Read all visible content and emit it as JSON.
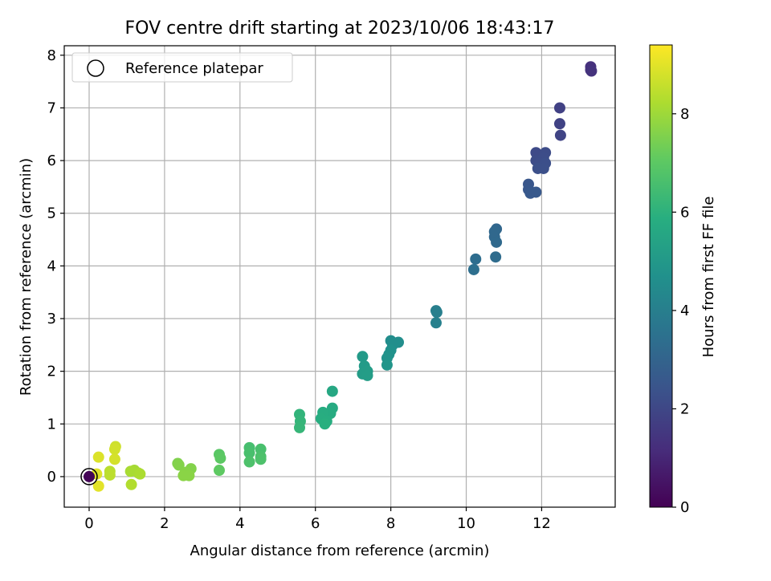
{
  "chart_data": {
    "type": "scatter",
    "title": "FOV centre drift starting at 2023/10/06 18:43:17",
    "xlabel": "Angular distance from reference (arcmin)",
    "ylabel": "Rotation from reference (arcmin)",
    "xlim": [
      -0.66,
      13.95
    ],
    "ylim": [
      -0.58,
      8.18
    ],
    "xticks": [
      0,
      2,
      4,
      6,
      8,
      10,
      12
    ],
    "yticks": [
      0,
      1,
      2,
      3,
      4,
      5,
      6,
      7,
      8
    ],
    "grid": true,
    "legend": {
      "position": "top-left",
      "entries": [
        "Reference platepar"
      ]
    },
    "reference_point": {
      "x": 0,
      "y": 0,
      "label": "Reference platepar"
    },
    "colorbar": {
      "label": "Hours from first FF file",
      "colormap": "viridis",
      "range": [
        0,
        9.4
      ],
      "ticks": [
        0,
        2,
        4,
        6,
        8
      ]
    },
    "points": [
      {
        "x": 13.3,
        "y": 7.78,
        "c": 1.3
      },
      {
        "x": 13.3,
        "y": 7.72,
        "c": 1.3
      },
      {
        "x": 13.32,
        "y": 7.7,
        "c": 1.35
      },
      {
        "x": 12.48,
        "y": 7.0,
        "c": 1.8
      },
      {
        "x": 12.48,
        "y": 6.7,
        "c": 1.85
      },
      {
        "x": 12.5,
        "y": 6.48,
        "c": 1.9
      },
      {
        "x": 11.85,
        "y": 6.15,
        "c": 2.1
      },
      {
        "x": 11.9,
        "y": 6.1,
        "c": 2.1
      },
      {
        "x": 12.1,
        "y": 6.15,
        "c": 2.15
      },
      {
        "x": 11.85,
        "y": 6.0,
        "c": 2.15
      },
      {
        "x": 12.05,
        "y": 6.05,
        "c": 2.2
      },
      {
        "x": 11.95,
        "y": 5.95,
        "c": 2.2
      },
      {
        "x": 12.1,
        "y": 5.95,
        "c": 2.25
      },
      {
        "x": 11.9,
        "y": 5.85,
        "c": 2.3
      },
      {
        "x": 12.05,
        "y": 5.85,
        "c": 2.3
      },
      {
        "x": 11.65,
        "y": 5.55,
        "c": 2.5
      },
      {
        "x": 11.65,
        "y": 5.45,
        "c": 2.55
      },
      {
        "x": 11.7,
        "y": 5.38,
        "c": 2.6
      },
      {
        "x": 11.85,
        "y": 5.4,
        "c": 2.6
      },
      {
        "x": 10.8,
        "y": 4.7,
        "c": 3.1
      },
      {
        "x": 10.75,
        "y": 4.65,
        "c": 3.15
      },
      {
        "x": 10.75,
        "y": 4.55,
        "c": 3.15
      },
      {
        "x": 10.8,
        "y": 4.45,
        "c": 3.2
      },
      {
        "x": 10.78,
        "y": 4.17,
        "c": 3.3
      },
      {
        "x": 10.25,
        "y": 4.13,
        "c": 3.35
      },
      {
        "x": 10.2,
        "y": 3.93,
        "c": 3.4
      },
      {
        "x": 9.2,
        "y": 3.15,
        "c": 4.0
      },
      {
        "x": 9.22,
        "y": 3.12,
        "c": 4.0
      },
      {
        "x": 9.2,
        "y": 2.92,
        "c": 4.05
      },
      {
        "x": 8.0,
        "y": 2.58,
        "c": 4.55
      },
      {
        "x": 8.2,
        "y": 2.55,
        "c": 4.6
      },
      {
        "x": 8.05,
        "y": 2.5,
        "c": 4.6
      },
      {
        "x": 8.0,
        "y": 2.4,
        "c": 4.7
      },
      {
        "x": 7.95,
        "y": 2.32,
        "c": 4.75
      },
      {
        "x": 7.9,
        "y": 2.25,
        "c": 4.8
      },
      {
        "x": 7.9,
        "y": 2.12,
        "c": 4.85
      },
      {
        "x": 7.25,
        "y": 2.28,
        "c": 5.05
      },
      {
        "x": 7.3,
        "y": 2.1,
        "c": 5.1
      },
      {
        "x": 7.25,
        "y": 1.95,
        "c": 5.15
      },
      {
        "x": 7.38,
        "y": 2.0,
        "c": 5.15
      },
      {
        "x": 7.38,
        "y": 1.92,
        "c": 5.2
      },
      {
        "x": 6.45,
        "y": 1.62,
        "c": 5.6
      },
      {
        "x": 6.45,
        "y": 1.3,
        "c": 5.7
      },
      {
        "x": 6.4,
        "y": 1.2,
        "c": 5.75
      },
      {
        "x": 6.2,
        "y": 1.22,
        "c": 5.8
      },
      {
        "x": 6.15,
        "y": 1.1,
        "c": 5.85
      },
      {
        "x": 6.3,
        "y": 1.05,
        "c": 5.85
      },
      {
        "x": 6.25,
        "y": 1.0,
        "c": 5.9
      },
      {
        "x": 5.58,
        "y": 1.18,
        "c": 6.1
      },
      {
        "x": 5.6,
        "y": 1.05,
        "c": 6.15
      },
      {
        "x": 5.58,
        "y": 0.93,
        "c": 6.2
      },
      {
        "x": 4.25,
        "y": 0.55,
        "c": 6.55
      },
      {
        "x": 4.55,
        "y": 0.52,
        "c": 6.6
      },
      {
        "x": 4.25,
        "y": 0.45,
        "c": 6.6
      },
      {
        "x": 4.55,
        "y": 0.38,
        "c": 6.65
      },
      {
        "x": 4.55,
        "y": 0.33,
        "c": 6.7
      },
      {
        "x": 4.25,
        "y": 0.28,
        "c": 6.7
      },
      {
        "x": 3.45,
        "y": 0.42,
        "c": 6.95
      },
      {
        "x": 3.48,
        "y": 0.35,
        "c": 7.0
      },
      {
        "x": 3.45,
        "y": 0.12,
        "c": 7.05
      },
      {
        "x": 2.35,
        "y": 0.25,
        "c": 7.55
      },
      {
        "x": 2.38,
        "y": 0.22,
        "c": 7.6
      },
      {
        "x": 2.7,
        "y": 0.15,
        "c": 7.6
      },
      {
        "x": 2.55,
        "y": 0.08,
        "c": 7.65
      },
      {
        "x": 2.5,
        "y": 0.02,
        "c": 7.7
      },
      {
        "x": 2.65,
        "y": 0.02,
        "c": 7.7
      },
      {
        "x": 1.2,
        "y": 0.12,
        "c": 8.1
      },
      {
        "x": 1.1,
        "y": 0.1,
        "c": 8.15
      },
      {
        "x": 1.3,
        "y": 0.07,
        "c": 8.15
      },
      {
        "x": 1.35,
        "y": 0.05,
        "c": 8.2
      },
      {
        "x": 1.12,
        "y": -0.15,
        "c": 8.3
      },
      {
        "x": 0.55,
        "y": 0.1,
        "c": 8.4
      },
      {
        "x": 0.55,
        "y": 0.03,
        "c": 8.45
      },
      {
        "x": 0.7,
        "y": 0.57,
        "c": 8.7
      },
      {
        "x": 0.68,
        "y": 0.52,
        "c": 8.75
      },
      {
        "x": 0.68,
        "y": 0.33,
        "c": 8.8
      },
      {
        "x": 0.25,
        "y": 0.37,
        "c": 8.9
      },
      {
        "x": 0.2,
        "y": 0.05,
        "c": 8.95
      },
      {
        "x": 0.25,
        "y": -0.18,
        "c": 9.0
      },
      {
        "x": 0.0,
        "y": 0.0,
        "c": 0.1
      }
    ]
  }
}
